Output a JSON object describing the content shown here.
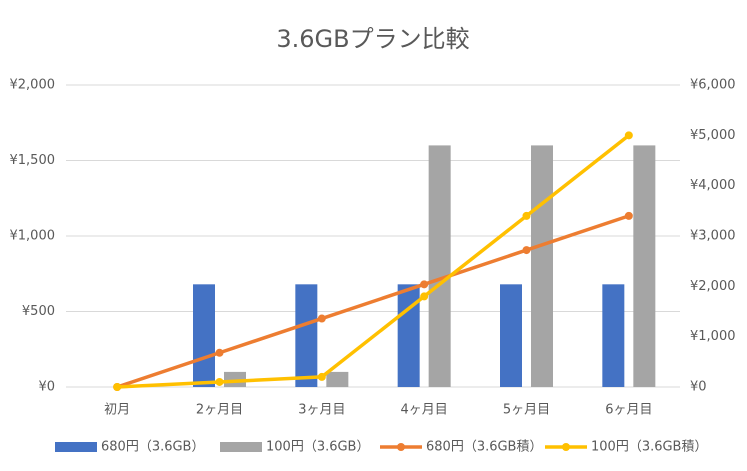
{
  "chart_data": {
    "type": "combo",
    "title": "3.6GBプラン比較",
    "categories": [
      "初月",
      "2ヶ月目",
      "3ヶ月目",
      "4ヶ月目",
      "5ヶ月目",
      "6ヶ月目"
    ],
    "series": [
      {
        "name": "680円（3.6GB）",
        "type": "bar",
        "color": "#4472c4",
        "values": [
          0,
          680,
          680,
          680,
          680,
          680
        ]
      },
      {
        "name": "100円（3.6GB）",
        "type": "bar",
        "color": "#a5a5a5",
        "values": [
          0,
          100,
          100,
          1600,
          1600,
          1600
        ]
      },
      {
        "name": "680円（3.6GB積）",
        "type": "line",
        "axis": "y2",
        "color": "#ed7d31",
        "values": [
          0,
          680,
          1360,
          2040,
          2720,
          3400
        ]
      },
      {
        "name": "100円（3.6GB積）",
        "type": "line",
        "axis": "y2",
        "color": "#ffc000",
        "values": [
          0,
          100,
          200,
          1800,
          3400,
          5000
        ]
      }
    ],
    "ylim": [
      0,
      2000
    ],
    "yticks": [
      {
        "value": 0,
        "label": "¥0"
      },
      {
        "value": 500,
        "label": "¥500"
      },
      {
        "value": 1000,
        "label": "¥1,000"
      },
      {
        "value": 1500,
        "label": "¥1,500"
      },
      {
        "value": 2000,
        "label": "¥2,000"
      }
    ],
    "y2lim": [
      0,
      6000
    ],
    "y2ticks": [
      {
        "value": 0,
        "label": "¥0"
      },
      {
        "value": 1000,
        "label": "¥1,000"
      },
      {
        "value": 2000,
        "label": "¥2,000"
      },
      {
        "value": 3000,
        "label": "¥3,000"
      },
      {
        "value": 4000,
        "label": "¥4,000"
      },
      {
        "value": 5000,
        "label": "¥5,000"
      },
      {
        "value": 6000,
        "label": "¥6,000"
      }
    ],
    "grid": true,
    "legend": "bottom"
  }
}
